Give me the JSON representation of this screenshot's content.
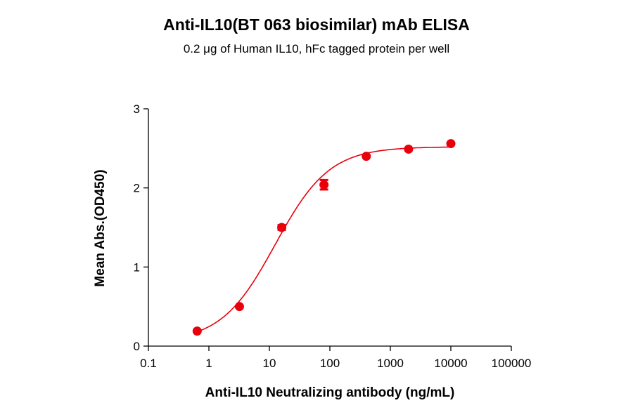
{
  "chart_data": {
    "type": "scatter",
    "title": "Anti-IL10(BT 063 biosimilar) mAb ELISA",
    "subtitle": "0.2 μg of Human IL10, hFc tagged protein per well",
    "xlabel": "Anti-IL10 Neutralizing antibody (ng/mL)",
    "ylabel": "Mean Abs.(OD450)",
    "xscale": "log",
    "xlim": [
      0.1,
      100000
    ],
    "ylim": [
      0,
      3
    ],
    "xticks": [
      "0.1",
      "1",
      "10",
      "100",
      "1000",
      "10000",
      "100000"
    ],
    "yticks": [
      "0",
      "1",
      "2",
      "3"
    ],
    "color": "#e8000b",
    "series": [
      {
        "name": "Anti-IL10",
        "x": [
          0.64,
          3.2,
          16,
          80,
          400,
          2000,
          10000
        ],
        "y": [
          0.19,
          0.5,
          1.5,
          2.04,
          2.4,
          2.49,
          2.56
        ],
        "error": [
          0.01,
          0.01,
          0.03,
          0.06,
          0.01,
          0.01,
          0.01
        ]
      }
    ],
    "fit": {
      "model": "4PL",
      "bottom": 0.05,
      "top": 2.52,
      "ec50": 12.5,
      "hill": 0.97
    }
  }
}
